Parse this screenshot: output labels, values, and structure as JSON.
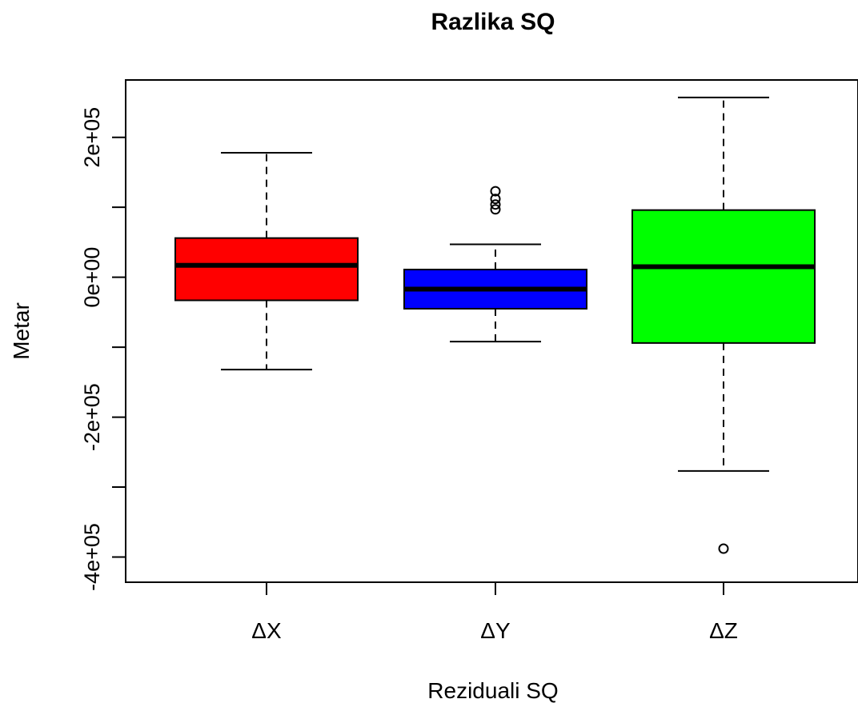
{
  "chart_data": {
    "type": "boxplot",
    "title": "Razlika SQ",
    "xlabel": "Reziduali SQ",
    "ylabel": "Metar",
    "ylim": [
      -436000,
      282000
    ],
    "yticks": [
      -400000,
      -300000,
      -200000,
      -100000,
      0,
      100000,
      200000
    ],
    "ytick_labels": [
      "-4e+05",
      "",
      "-2e+05",
      "",
      "0e+00",
      "",
      "2e+05"
    ],
    "categories": [
      "ΔX",
      "ΔY",
      "ΔZ"
    ],
    "grid": false,
    "legend": "none",
    "series": [
      {
        "category": "ΔX",
        "color": "#ff0000",
        "whisker_low": -132000,
        "q1": -33000,
        "median": 17000,
        "q3": 56000,
        "whisker_high": 178000,
        "outliers": []
      },
      {
        "category": "ΔY",
        "color": "#0000ff",
        "whisker_low": -92000,
        "q1": -45000,
        "median": -17000,
        "q3": 11000,
        "whisker_high": 47000,
        "outliers": [
          123000,
          112000,
          104000,
          97000
        ]
      },
      {
        "category": "ΔZ",
        "color": "#00ff00",
        "whisker_low": -277000,
        "q1": -94000,
        "median": 15000,
        "q3": 96000,
        "whisker_high": 257000,
        "outliers": [
          -388000
        ]
      }
    ]
  }
}
